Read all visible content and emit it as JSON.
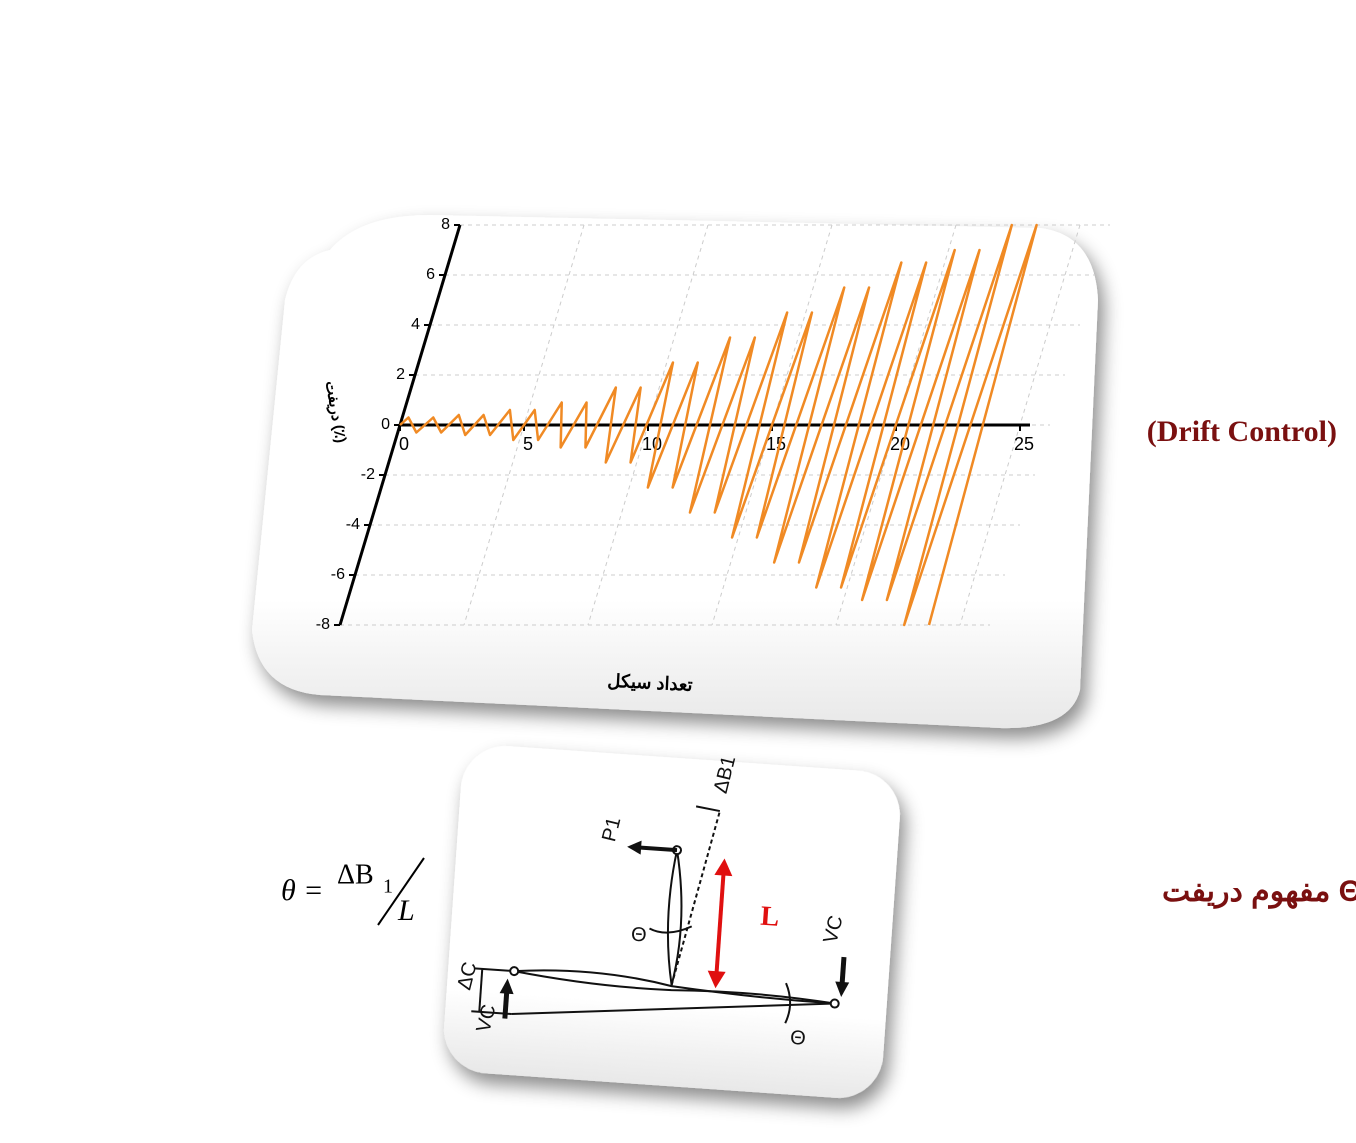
{
  "chart_data": {
    "type": "line",
    "y_label": "دریفت (٪)",
    "x_label": "تعداد سیکل",
    "xlim": [
      0,
      25
    ],
    "ylim": [
      -8,
      8
    ],
    "xticks": [
      0,
      5,
      10,
      15,
      20,
      25
    ],
    "yticks": [
      -8,
      -6,
      -4,
      -2,
      0,
      2,
      4,
      6,
      8
    ],
    "grid": true,
    "color": "#f08a24",
    "x": [
      0,
      0.25,
      0.75,
      1.25,
      1.75,
      2.25,
      2.75,
      3.25,
      3.75,
      4.25,
      4.75,
      5.25,
      5.75,
      6.25,
      6.75,
      7.25,
      7.75,
      8.25,
      8.75,
      9.25,
      9.75,
      10.25,
      10.75,
      11.25,
      11.75,
      12.25,
      12.75,
      13.25,
      13.75,
      14.25,
      14.75,
      15.25,
      15.75,
      16.25,
      16.75,
      17.25,
      17.75,
      18.25,
      18.75,
      19.25,
      19.75,
      20.25,
      20.75,
      21.25,
      21.75,
      22.25,
      22.75,
      23.25,
      23.75
    ],
    "values": [
      0,
      0.3,
      -0.3,
      0.3,
      -0.3,
      0.4,
      -0.4,
      0.4,
      -0.4,
      0.6,
      -0.6,
      0.6,
      -0.6,
      0.9,
      -0.9,
      0.9,
      -0.9,
      1.5,
      -1.5,
      1.5,
      -1.5,
      2.5,
      -2.5,
      2.5,
      -2.5,
      3.5,
      -3.5,
      3.5,
      -3.5,
      4.5,
      -4.5,
      4.5,
      -4.5,
      5.5,
      -5.5,
      5.5,
      -5.5,
      6.5,
      -6.5,
      6.5,
      -6.5,
      7,
      -7,
      7,
      -7,
      8,
      -8,
      8,
      -8
    ]
  },
  "annotations": {
    "drift_control": "(Drift  Control)",
    "drift_concept": "مفهوم دریفت Θ"
  },
  "formula": {
    "lhs": "θ =",
    "numerator": "ΔB",
    "subscript": "1",
    "denominator": "L"
  },
  "diagram": {
    "p1": "P1",
    "delta_b1": "ΔB1",
    "length": "L",
    "theta_top": "Θ",
    "theta_bottom": "Θ",
    "vc_right": "VC",
    "vc_left": "VC",
    "delta_c": "ΔC"
  }
}
